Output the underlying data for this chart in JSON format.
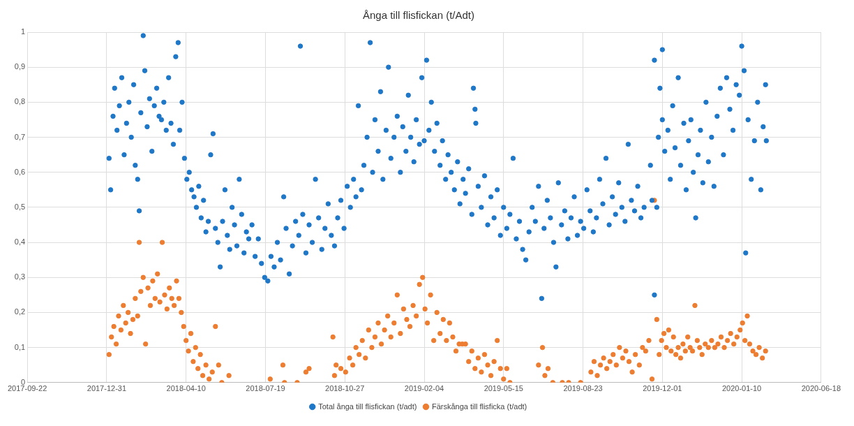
{
  "chart_data": {
    "type": "scatter",
    "title": "Ånga till flisfickan (t/Adt)",
    "xlim": [
      "2017-09-22",
      "2020-06-18"
    ],
    "xticks": [
      {
        "value": "2017-09-22",
        "label": "2017-09-22"
      },
      {
        "value": "2017-12-31",
        "label": "2017-12-31"
      },
      {
        "value": "2018-04-10",
        "label": "2018-04-10"
      },
      {
        "value": "2018-07-19",
        "label": "2018-07-19"
      },
      {
        "value": "2018-10-27",
        "label": "2018-10-27"
      },
      {
        "value": "2019-02-04",
        "label": "2019-02-04"
      },
      {
        "value": "2019-05-15",
        "label": "2019-05-15"
      },
      {
        "value": "2019-08-23",
        "label": "2019-08-23"
      },
      {
        "value": "2019-12-01",
        "label": "2019-12-01"
      },
      {
        "value": "2020-03-10",
        "label": "2020-01-10"
      },
      {
        "value": "2020-06-18",
        "label": "2020-06-18"
      }
    ],
    "ylim": [
      0,
      1
    ],
    "yticks": [
      0,
      {
        "value": 0.1,
        "label": "0,1"
      },
      {
        "value": 0.2,
        "label": "0,2"
      },
      {
        "value": 0.3,
        "label": "0,3"
      },
      {
        "value": 0.4,
        "label": "0,4"
      },
      {
        "value": 0.5,
        "label": "0,5"
      },
      {
        "value": 0.6,
        "label": "0,6"
      },
      {
        "value": 0.7,
        "label": "0,7"
      },
      {
        "value": 0.8,
        "label": "0,8"
      },
      {
        "value": 0.9,
        "label": "0,9"
      },
      1
    ],
    "grid": true,
    "legend": "bottom",
    "marker": "circle",
    "series": [
      {
        "name": "Total ånga till flisfickan (t/adt)",
        "color": "#1f77c8",
        "x": [
          "2018-01-03",
          "2018-01-05",
          "2018-01-08",
          "2018-01-10",
          "2018-01-13",
          "2018-01-16",
          "2018-01-19",
          "2018-01-22",
          "2018-01-25",
          "2018-01-28",
          "2018-01-31",
          "2018-02-03",
          "2018-02-05",
          "2018-02-08",
          "2018-02-10",
          "2018-02-12",
          "2018-02-15",
          "2018-02-17",
          "2018-02-20",
          "2018-02-23",
          "2018-02-26",
          "2018-03-01",
          "2018-03-04",
          "2018-03-07",
          "2018-03-10",
          "2018-03-13",
          "2018-03-16",
          "2018-03-19",
          "2018-03-22",
          "2018-03-25",
          "2018-03-28",
          "2018-03-31",
          "2018-04-02",
          "2018-04-05",
          "2018-04-08",
          "2018-04-11",
          "2018-04-14",
          "2018-04-17",
          "2018-04-20",
          "2018-04-23",
          "2018-04-26",
          "2018-04-29",
          "2018-05-02",
          "2018-05-05",
          "2018-05-08",
          "2018-05-11",
          "2018-05-14",
          "2018-05-17",
          "2018-05-20",
          "2018-05-23",
          "2018-05-26",
          "2018-05-29",
          "2018-06-01",
          "2018-06-04",
          "2018-06-07",
          "2018-06-10",
          "2018-06-13",
          "2018-06-16",
          "2018-06-19",
          "2018-06-22",
          "2018-06-25",
          "2018-06-28",
          "2018-07-02",
          "2018-07-06",
          "2018-07-10",
          "2018-07-14",
          "2018-07-18",
          "2018-07-22",
          "2018-07-26",
          "2018-07-30",
          "2018-08-03",
          "2018-08-07",
          "2018-08-11",
          "2018-08-14",
          "2018-08-18",
          "2018-08-22",
          "2018-08-26",
          "2018-08-30",
          "2018-09-01",
          "2018-09-04",
          "2018-09-08",
          "2018-09-12",
          "2018-09-16",
          "2018-09-20",
          "2018-09-24",
          "2018-09-28",
          "2018-10-02",
          "2018-10-06",
          "2018-10-10",
          "2018-10-14",
          "2018-10-18",
          "2018-10-22",
          "2018-10-26",
          "2018-10-30",
          "2018-11-03",
          "2018-11-07",
          "2018-11-10",
          "2018-11-13",
          "2018-11-17",
          "2018-11-20",
          "2018-11-24",
          "2018-11-28",
          "2018-12-01",
          "2018-12-04",
          "2018-12-08",
          "2018-12-11",
          "2018-12-14",
          "2018-12-18",
          "2018-12-21",
          "2018-12-24",
          "2018-12-28",
          "2019-01-01",
          "2019-01-05",
          "2019-01-08",
          "2019-01-12",
          "2019-01-15",
          "2019-01-18",
          "2019-01-22",
          "2019-01-25",
          "2019-01-29",
          "2019-02-01",
          "2019-02-04",
          "2019-02-07",
          "2019-02-10",
          "2019-02-13",
          "2019-02-17",
          "2019-02-20",
          "2019-02-24",
          "2019-02-27",
          "2019-03-03",
          "2019-03-06",
          "2019-03-10",
          "2019-03-14",
          "2019-03-18",
          "2019-03-21",
          "2019-03-25",
          "2019-03-28",
          "2019-04-01",
          "2019-04-05",
          "2019-04-07",
          "2019-04-09",
          "2019-04-10",
          "2019-04-13",
          "2019-04-17",
          "2019-04-21",
          "2019-04-25",
          "2019-04-29",
          "2019-05-03",
          "2019-05-07",
          "2019-05-11",
          "2019-05-15",
          "2019-05-19",
          "2019-05-23",
          "2019-05-27",
          "2019-05-31",
          "2019-06-04",
          "2019-06-08",
          "2019-06-12",
          "2019-06-16",
          "2019-06-20",
          "2019-06-24",
          "2019-06-28",
          "2019-07-02",
          "2019-07-05",
          "2019-07-09",
          "2019-07-13",
          "2019-07-17",
          "2019-07-20",
          "2019-07-23",
          "2019-07-27",
          "2019-07-31",
          "2019-08-04",
          "2019-08-08",
          "2019-08-12",
          "2019-08-16",
          "2019-08-20",
          "2019-08-24",
          "2019-08-28",
          "2019-09-01",
          "2019-09-05",
          "2019-09-09",
          "2019-09-13",
          "2019-09-17",
          "2019-09-21",
          "2019-09-25",
          "2019-09-29",
          "2019-10-03",
          "2019-10-07",
          "2019-10-11",
          "2019-10-15",
          "2019-10-19",
          "2019-10-23",
          "2019-10-27",
          "2019-10-31",
          "2019-11-04",
          "2019-11-08",
          "2019-11-21",
          "2019-11-21",
          "2019-11-16",
          "2019-11-18",
          "2019-11-24",
          "2019-11-26",
          "2019-11-28",
          "2019-12-01",
          "2019-12-01",
          "2019-12-04",
          "2019-12-08",
          "2019-12-11",
          "2019-12-14",
          "2019-12-17",
          "2019-12-21",
          "2019-12-24",
          "2019-12-28",
          "2019-12-31",
          "2020-01-03",
          "2020-01-06",
          "2020-01-09",
          "2020-01-12",
          "2020-01-15",
          "2020-01-18",
          "2020-01-21",
          "2020-01-25",
          "2020-01-28",
          "2020-02-01",
          "2020-02-04",
          "2020-02-08",
          "2020-02-12",
          "2020-02-16",
          "2020-02-20",
          "2020-02-24",
          "2020-02-28",
          "2020-03-03",
          "2020-03-07",
          "2020-03-10",
          "2020-03-13",
          "2020-03-15",
          "2020-03-18",
          "2020-03-22",
          "2020-03-26",
          "2020-03-30",
          "2020-04-03",
          "2020-04-06",
          "2020-04-09",
          "2020-04-10"
        ],
        "values": [
          0.64,
          0.55,
          0.76,
          0.84,
          0.72,
          0.79,
          0.87,
          0.65,
          0.74,
          0.8,
          0.7,
          0.85,
          0.62,
          0.58,
          0.49,
          0.77,
          0.99,
          0.89,
          0.73,
          0.81,
          0.66,
          0.79,
          0.84,
          0.76,
          0.75,
          0.8,
          0.72,
          0.87,
          0.74,
          0.68,
          0.93,
          0.97,
          0.72,
          0.8,
          0.64,
          0.58,
          0.6,
          0.55,
          0.53,
          0.5,
          0.56,
          0.47,
          0.52,
          0.43,
          0.46,
          0.65,
          0.71,
          0.44,
          0.4,
          0.33,
          0.46,
          0.55,
          0.42,
          0.38,
          0.5,
          0.45,
          0.39,
          0.58,
          0.48,
          0.37,
          0.43,
          0.41,
          0.45,
          0.36,
          0.41,
          0.34,
          0.3,
          0.29,
          0.36,
          0.33,
          0.4,
          0.35,
          0.53,
          0.44,
          0.31,
          0.39,
          0.46,
          0.42,
          0.96,
          0.48,
          0.37,
          0.45,
          0.4,
          0.58,
          0.47,
          0.38,
          0.44,
          0.51,
          0.42,
          0.39,
          0.47,
          0.52,
          0.44,
          0.56,
          0.5,
          0.58,
          0.53,
          0.79,
          0.55,
          0.62,
          0.7,
          0.97,
          0.6,
          0.75,
          0.66,
          0.83,
          0.58,
          0.72,
          0.9,
          0.64,
          0.7,
          0.76,
          0.6,
          0.73,
          0.66,
          0.82,
          0.7,
          0.63,
          0.75,
          0.68,
          0.87,
          0.69,
          0.92,
          0.72,
          0.8,
          0.66,
          0.74,
          0.62,
          0.69,
          0.58,
          0.65,
          0.6,
          0.55,
          0.63,
          0.51,
          0.58,
          0.54,
          0.61,
          0.48,
          0.84,
          0.78,
          0.74,
          0.56,
          0.5,
          0.59,
          0.45,
          0.53,
          0.47,
          0.55,
          0.42,
          0.5,
          0.44,
          0.48,
          0.64,
          0.41,
          0.46,
          0.38,
          0.35,
          0.43,
          0.5,
          0.46,
          0.56,
          0.24,
          0.44,
          0.52,
          0.47,
          0.4,
          0.33,
          0.57,
          0.45,
          0.49,
          0.41,
          0.47,
          0.53,
          0.42,
          0.46,
          0.44,
          0.55,
          0.49,
          0.43,
          0.47,
          0.58,
          0.51,
          0.64,
          0.45,
          0.53,
          0.48,
          0.57,
          0.5,
          0.46,
          0.68,
          0.52,
          0.49,
          0.56,
          0.47,
          0.5,
          0.92,
          0.25,
          0.62,
          0.52,
          0.5,
          0.7,
          0.84,
          0.95,
          0.75,
          0.66,
          0.72,
          0.58,
          0.79,
          0.67,
          0.87,
          0.62,
          0.74,
          0.55,
          0.69,
          0.75,
          0.6,
          0.47,
          0.65,
          0.72,
          0.57,
          0.8,
          0.63,
          0.7,
          0.56,
          0.76,
          0.84,
          0.65,
          0.87,
          0.78,
          0.72,
          0.85,
          0.82,
          0.96,
          0.89,
          0.37,
          0.75,
          0.58,
          0.69,
          0.8,
          0.55,
          0.73,
          0.85,
          0.69
        ]
      },
      {
        "name": "Färskånga till flisficka (t/adt)",
        "color": "#ed7d31",
        "x": [
          "2018-01-03",
          "2018-01-06",
          "2018-01-09",
          "2018-01-12",
          "2018-01-15",
          "2018-01-18",
          "2018-01-21",
          "2018-01-24",
          "2018-01-27",
          "2018-01-30",
          "2018-02-02",
          "2018-02-05",
          "2018-02-08",
          "2018-02-10",
          "2018-02-12",
          "2018-02-15",
          "2018-02-18",
          "2018-02-21",
          "2018-02-24",
          "2018-02-27",
          "2018-03-02",
          "2018-03-05",
          "2018-03-08",
          "2018-03-11",
          "2018-03-14",
          "2018-03-17",
          "2018-03-20",
          "2018-03-23",
          "2018-03-26",
          "2018-03-29",
          "2018-04-01",
          "2018-04-04",
          "2018-04-07",
          "2018-04-10",
          "2018-04-13",
          "2018-04-16",
          "2018-04-19",
          "2018-04-22",
          "2018-04-25",
          "2018-04-28",
          "2018-05-01",
          "2018-05-05",
          "2018-05-09",
          "2018-05-13",
          "2018-05-17",
          "2018-05-21",
          "2018-05-25",
          "2018-06-03",
          "2018-07-25",
          "2018-08-10",
          "2018-08-12",
          "2018-08-28",
          "2018-09-08",
          "2018-09-12",
          "2018-10-12",
          "2018-10-14",
          "2018-10-16",
          "2018-10-22",
          "2018-10-28",
          "2018-11-02",
          "2018-11-06",
          "2018-11-10",
          "2018-11-14",
          "2018-11-18",
          "2018-11-22",
          "2018-11-26",
          "2018-11-30",
          "2018-12-04",
          "2018-12-08",
          "2018-12-12",
          "2018-12-16",
          "2018-12-20",
          "2018-12-24",
          "2018-12-28",
          "2019-01-01",
          "2019-01-05",
          "2019-01-09",
          "2019-01-13",
          "2019-01-17",
          "2019-01-21",
          "2019-01-25",
          "2019-01-29",
          "2019-02-02",
          "2019-02-05",
          "2019-02-08",
          "2019-02-12",
          "2019-02-16",
          "2019-02-20",
          "2019-02-24",
          "2019-02-28",
          "2019-03-04",
          "2019-03-08",
          "2019-03-12",
          "2019-03-16",
          "2019-03-20",
          "2019-03-24",
          "2019-03-28",
          "2019-04-01",
          "2019-04-05",
          "2019-04-09",
          "2019-04-13",
          "2019-04-17",
          "2019-04-21",
          "2019-04-25",
          "2019-04-29",
          "2019-05-03",
          "2019-05-07",
          "2019-05-11",
          "2019-05-15",
          "2019-05-19",
          "2019-05-23",
          "2019-06-28",
          "2019-07-03",
          "2019-07-06",
          "2019-07-10",
          "2019-07-16",
          "2019-07-28",
          "2019-08-05",
          "2019-08-20",
          "2019-09-02",
          "2019-09-06",
          "2019-09-10",
          "2019-09-14",
          "2019-09-18",
          "2019-09-22",
          "2019-09-26",
          "2019-09-30",
          "2019-10-04",
          "2019-10-08",
          "2019-10-12",
          "2019-10-16",
          "2019-10-20",
          "2019-10-24",
          "2019-10-28",
          "2019-11-02",
          "2019-11-06",
          "2019-11-10",
          "2019-11-14",
          "2019-11-18",
          "2019-11-21",
          "2019-11-24",
          "2019-11-27",
          "2019-11-30",
          "2019-12-03",
          "2019-12-06",
          "2019-12-09",
          "2019-12-12",
          "2019-12-15",
          "2019-12-18",
          "2019-12-21",
          "2019-12-24",
          "2019-12-27",
          "2019-12-30",
          "2020-01-02",
          "2020-01-05",
          "2020-01-08",
          "2020-01-11",
          "2020-01-14",
          "2020-01-17",
          "2020-01-20",
          "2020-01-24",
          "2020-01-28",
          "2020-02-01",
          "2020-02-05",
          "2020-02-09",
          "2020-02-13",
          "2020-02-17",
          "2020-02-21",
          "2020-02-25",
          "2020-02-29",
          "2020-03-04",
          "2020-03-08",
          "2020-03-11",
          "2020-03-14",
          "2020-03-17",
          "2020-03-20",
          "2020-03-24",
          "2020-03-28",
          "2020-04-01",
          "2020-04-05",
          "2020-04-09"
        ],
        "values": [
          0.08,
          0.13,
          0.16,
          0.11,
          0.19,
          0.15,
          0.22,
          0.17,
          0.2,
          0.14,
          0.18,
          0.24,
          0.19,
          0.4,
          0.26,
          0.3,
          0.11,
          0.27,
          0.22,
          0.29,
          0.24,
          0.31,
          0.23,
          0.4,
          0.25,
          0.21,
          0.27,
          0.24,
          0.22,
          0.29,
          0.24,
          0.2,
          0.16,
          0.12,
          0.09,
          0.14,
          0.06,
          0.1,
          0.04,
          0.08,
          0.02,
          0.05,
          0.01,
          0.03,
          0.16,
          0.05,
          0,
          0.02,
          0.01,
          0.05,
          0,
          0,
          0.03,
          0.04,
          0.13,
          0.02,
          0.05,
          0.04,
          0.03,
          0.07,
          0.05,
          0.1,
          0.08,
          0.12,
          0.07,
          0.15,
          0.1,
          0.13,
          0.17,
          0.11,
          0.15,
          0.19,
          0.13,
          0.17,
          0.25,
          0.14,
          0.21,
          0.18,
          0.16,
          0.22,
          0.19,
          0.28,
          0.3,
          0.21,
          0.17,
          0.25,
          0.12,
          0.2,
          0.14,
          0.18,
          0.12,
          0.17,
          0.13,
          0.09,
          0.11,
          0.11,
          0.11,
          0.06,
          0.09,
          0.04,
          0.07,
          0.03,
          0.08,
          0.05,
          0.02,
          0.06,
          0.12,
          0.04,
          0.01,
          0.04,
          0,
          0.05,
          0.1,
          0.02,
          0.04,
          0,
          0,
          0,
          0,
          0.03,
          0.06,
          0.02,
          0.05,
          0.07,
          0.04,
          0.06,
          0.08,
          0.05,
          0.1,
          0.07,
          0.09,
          0.06,
          0.03,
          0.08,
          0.05,
          0.1,
          0.09,
          0.12,
          0.01,
          0.52,
          0.18,
          0.08,
          0.12,
          0.14,
          0.1,
          0.15,
          0.09,
          0.13,
          0.08,
          0.1,
          0.07,
          0.11,
          0.09,
          0.13,
          0.1,
          0.09,
          0.22,
          0.12,
          0.1,
          0.08,
          0.11,
          0.1,
          0.12,
          0.1,
          0.11,
          0.13,
          0.1,
          0.12,
          0.14,
          0.11,
          0.13,
          0.15,
          0.17,
          0.12,
          0.19,
          0.11,
          0.09,
          0.08,
          0.1,
          0.07,
          0.09
        ]
      }
    ]
  }
}
